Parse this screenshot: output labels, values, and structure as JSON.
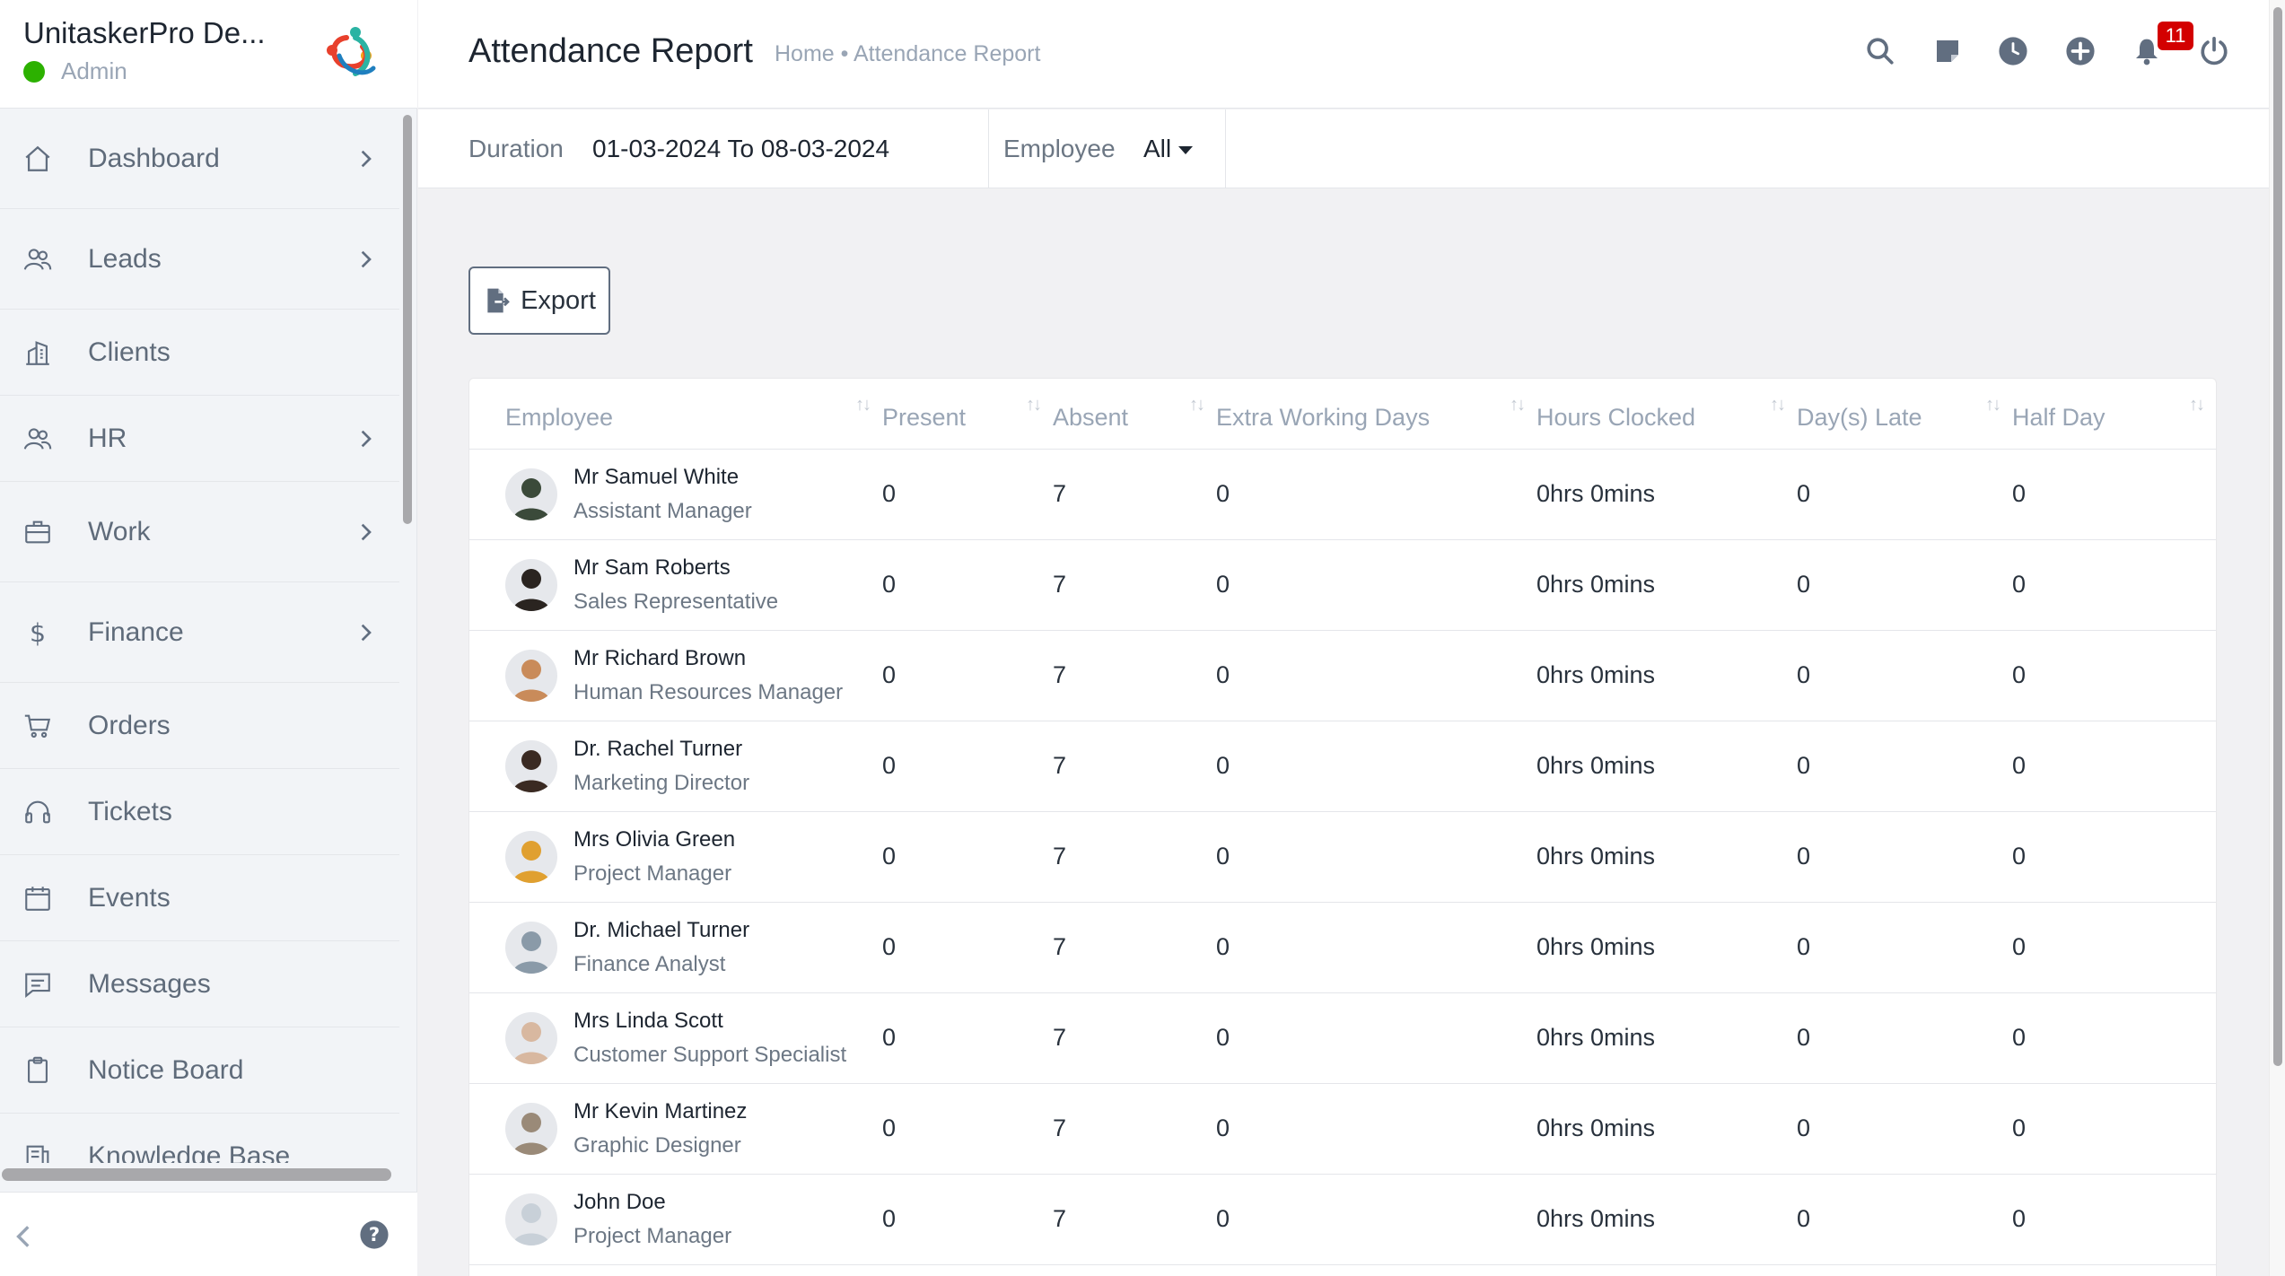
{
  "brand": {
    "name": "UnitaskerPro De...",
    "role": "Admin",
    "status_color": "#2cb100"
  },
  "sidebar": {
    "items": [
      {
        "label": "Dashboard",
        "icon": "home-icon",
        "has_children": true
      },
      {
        "label": "Leads",
        "icon": "users-icon",
        "has_children": true
      },
      {
        "label": "Clients",
        "icon": "building-icon",
        "has_children": false
      },
      {
        "label": "HR",
        "icon": "people-icon",
        "has_children": true
      },
      {
        "label": "Work",
        "icon": "briefcase-icon",
        "has_children": true
      },
      {
        "label": "Finance",
        "icon": "dollar-icon",
        "has_children": true
      },
      {
        "label": "Orders",
        "icon": "cart-icon",
        "has_children": false
      },
      {
        "label": "Tickets",
        "icon": "headset-icon",
        "has_children": false
      },
      {
        "label": "Events",
        "icon": "calendar-icon",
        "has_children": false
      },
      {
        "label": "Messages",
        "icon": "message-icon",
        "has_children": false
      },
      {
        "label": "Notice Board",
        "icon": "clipboard-icon",
        "has_children": false
      },
      {
        "label": "Knowledge Base",
        "icon": "book-icon",
        "has_children": false
      }
    ]
  },
  "header": {
    "title": "Attendance Report",
    "breadcrumb": "Home • Attendance Report",
    "notification_count": "11",
    "icons": [
      "search-icon",
      "sticky-note-icon",
      "clock-icon",
      "plus-circle-icon",
      "bell-icon",
      "power-icon"
    ]
  },
  "filters": {
    "duration_label": "Duration",
    "duration_value": "01-03-2024 To 08-03-2024",
    "employee_label": "Employee",
    "employee_value": "All"
  },
  "toolbar": {
    "export_label": "Export"
  },
  "table": {
    "columns": [
      "Employee",
      "Present",
      "Absent",
      "Extra Working Days",
      "Hours Clocked",
      "Day(s) Late",
      "Half Day"
    ],
    "rows": [
      {
        "name": "Mr Samuel White",
        "designation": "Assistant Manager",
        "present": "0",
        "absent": "7",
        "extra": "0",
        "hours": "0hrs 0mins",
        "late": "0",
        "half": "0"
      },
      {
        "name": "Mr Sam Roberts",
        "designation": "Sales Representative",
        "present": "0",
        "absent": "7",
        "extra": "0",
        "hours": "0hrs 0mins",
        "late": "0",
        "half": "0"
      },
      {
        "name": "Mr Richard Brown",
        "designation": "Human Resources Manager",
        "present": "0",
        "absent": "7",
        "extra": "0",
        "hours": "0hrs 0mins",
        "late": "0",
        "half": "0"
      },
      {
        "name": "Dr. Rachel Turner",
        "designation": "Marketing Director",
        "present": "0",
        "absent": "7",
        "extra": "0",
        "hours": "0hrs 0mins",
        "late": "0",
        "half": "0"
      },
      {
        "name": "Mrs Olivia Green",
        "designation": "Project Manager",
        "present": "0",
        "absent": "7",
        "extra": "0",
        "hours": "0hrs 0mins",
        "late": "0",
        "half": "0"
      },
      {
        "name": "Dr. Michael Turner",
        "designation": "Finance Analyst",
        "present": "0",
        "absent": "7",
        "extra": "0",
        "hours": "0hrs 0mins",
        "late": "0",
        "half": "0"
      },
      {
        "name": "Mrs Linda Scott",
        "designation": "Customer Support Specialist",
        "present": "0",
        "absent": "7",
        "extra": "0",
        "hours": "0hrs 0mins",
        "late": "0",
        "half": "0"
      },
      {
        "name": "Mr Kevin Martinez",
        "designation": "Graphic Designer",
        "present": "0",
        "absent": "7",
        "extra": "0",
        "hours": "0hrs 0mins",
        "late": "0",
        "half": "0"
      },
      {
        "name": "John Doe",
        "designation": "Project Manager",
        "present": "0",
        "absent": "7",
        "extra": "0",
        "hours": "0hrs 0mins",
        "late": "0",
        "half": "0"
      }
    ]
  },
  "avatar_colors": [
    "#3b4a3a",
    "#2a2420",
    "#c98b5a",
    "#3a2a22",
    "#e0a030",
    "#8a9aa8",
    "#d8b8a0",
    "#9a8a78",
    "#c8d0d8"
  ],
  "colors": {
    "badge": "#d30000",
    "icon": "#616e80"
  }
}
